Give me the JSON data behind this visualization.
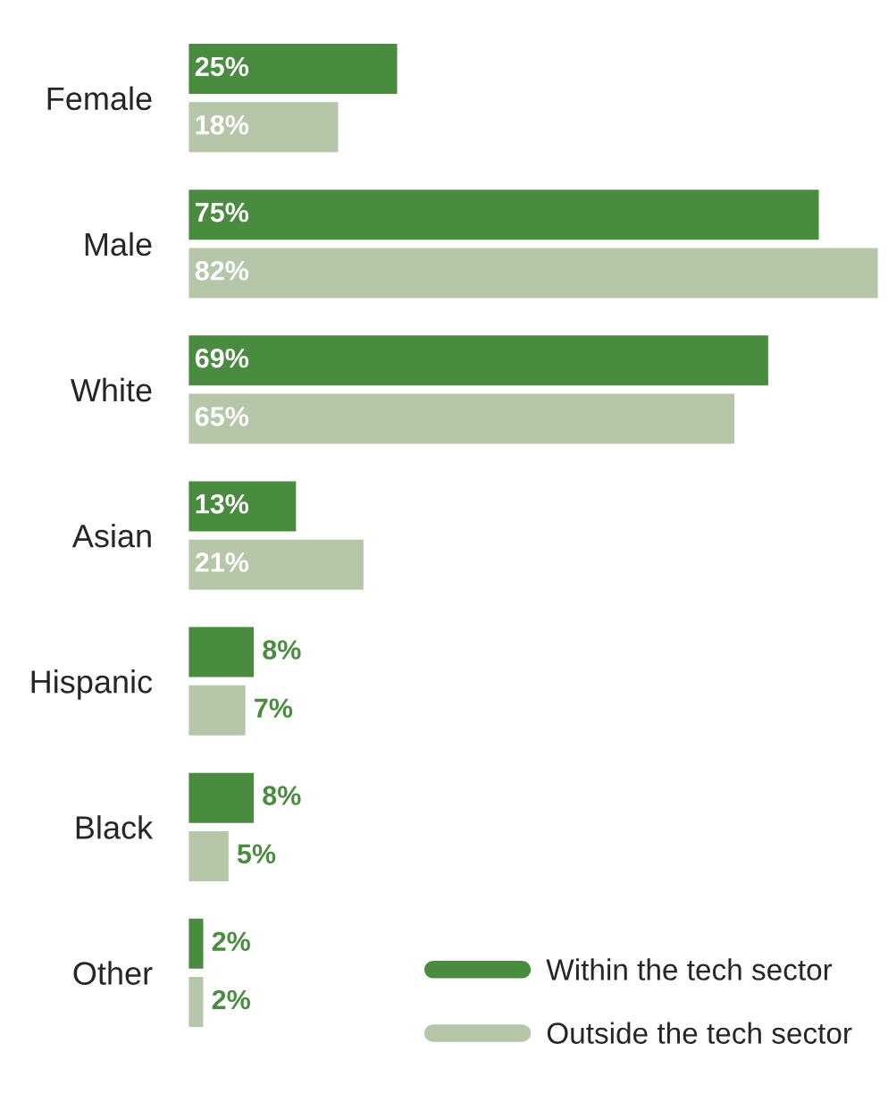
{
  "chart_data": {
    "type": "bar",
    "orientation": "horizontal",
    "categories": [
      "Female",
      "Male",
      "White",
      "Asian",
      "Hispanic",
      "Black",
      "Other"
    ],
    "series": [
      {
        "name": "Within the tech sector",
        "color": "#4a8c3f",
        "values": [
          25,
          75,
          69,
          13,
          8,
          8,
          2
        ],
        "value_labels": [
          "25%",
          "75%",
          "69%",
          "13%",
          "8%",
          "8%",
          "2%"
        ]
      },
      {
        "name": "Outside the tech sector",
        "color": "#b6c6a8",
        "values": [
          18,
          82,
          65,
          21,
          7,
          5,
          2
        ],
        "value_labels": [
          "18%",
          "82%",
          "65%",
          "21%",
          "7%",
          "5%",
          "2%"
        ]
      }
    ],
    "legend": "bottom right",
    "grid": false
  }
}
